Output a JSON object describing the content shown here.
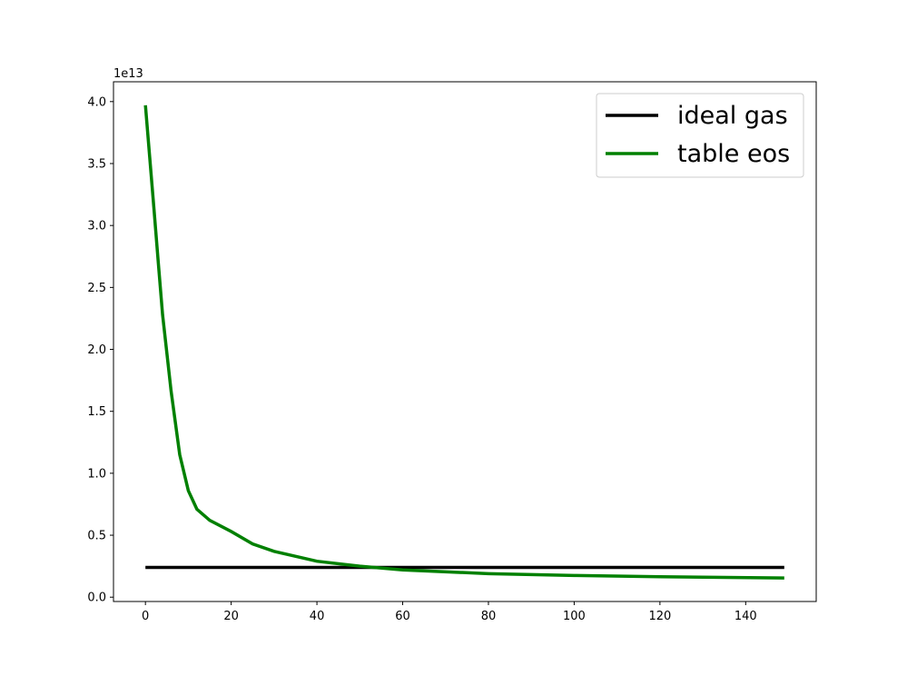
{
  "chart_data": {
    "type": "line",
    "y_offset_label": "1e13",
    "x": [
      0,
      1,
      2,
      3,
      4,
      6,
      8,
      10,
      12,
      15,
      20,
      25,
      30,
      40,
      50,
      60,
      80,
      100,
      120,
      149
    ],
    "series": [
      {
        "name": "ideal gas",
        "color": "#000000",
        "values": [
          0.24,
          0.24,
          0.24,
          0.24,
          0.24,
          0.24,
          0.24,
          0.24,
          0.24,
          0.24,
          0.24,
          0.24,
          0.24,
          0.24,
          0.24,
          0.24,
          0.24,
          0.24,
          0.24,
          0.24
        ]
      },
      {
        "name": "table eos",
        "color": "#008000",
        "values": [
          3.97,
          3.55,
          3.13,
          2.7,
          2.28,
          1.66,
          1.15,
          0.86,
          0.71,
          0.62,
          0.53,
          0.43,
          0.37,
          0.29,
          0.25,
          0.22,
          0.19,
          0.175,
          0.165,
          0.155
        ]
      }
    ],
    "xlim": [
      -7.45,
      156.45
    ],
    "xticks": [
      0,
      20,
      40,
      60,
      80,
      100,
      120,
      140
    ],
    "ylim": [
      -0.035,
      4.16
    ],
    "yticks": [
      {
        "value": 0,
        "label": "0.0"
      },
      0.5,
      {
        "value": 1,
        "label": "1.0"
      },
      1.5,
      {
        "value": 2,
        "label": "2.0"
      },
      2.5,
      {
        "value": 3,
        "label": "3.0"
      },
      3.5,
      {
        "value": 4,
        "label": "4.0"
      }
    ],
    "grid": false,
    "legend": "upper right"
  }
}
